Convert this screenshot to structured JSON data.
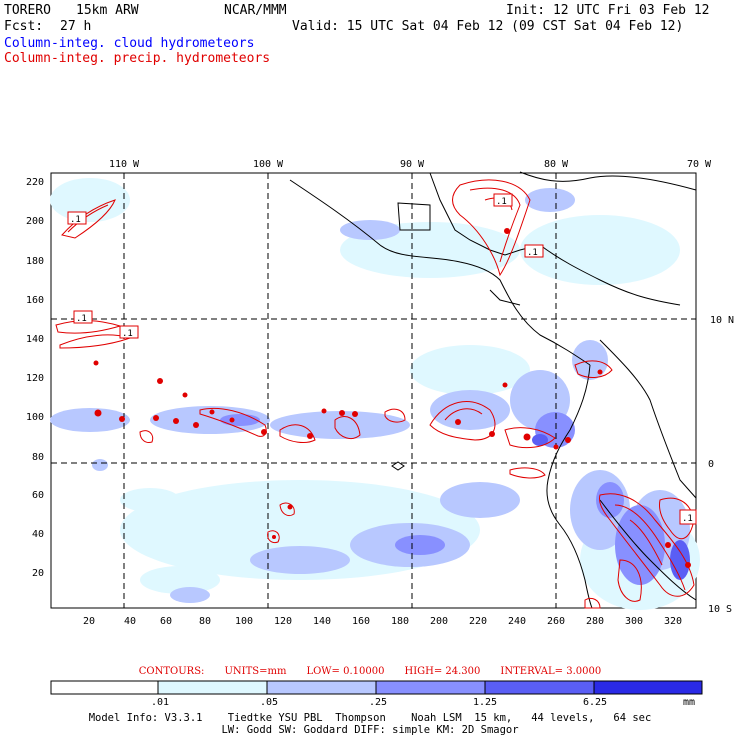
{
  "header": {
    "model_name": "TORERO",
    "resolution": "15km ARW",
    "org": "NCAR/MMM",
    "init": "Init: 12 UTC Fri 03 Feb 12",
    "fcst_label": "Fcst:",
    "fcst_value": "27 h",
    "valid": "Valid: 15 UTC Sat 04 Feb 12 (09 CST Sat 04 Feb 12)",
    "legend_cloud": "Column-integ. cloud hydrometeors",
    "legend_precip": "Column-integ. precip. hydrometeors"
  },
  "colors": {
    "cloud": "#0000ff",
    "precip": "#e00000",
    "land": "#000000"
  },
  "map": {
    "top_ticks": [
      "110 W",
      "100 W",
      "90 W",
      "80 W",
      "70 W"
    ],
    "left_ticks": [
      "220",
      "200",
      "180",
      "160",
      "140",
      "120",
      "100",
      "80",
      "60",
      "40",
      "20"
    ],
    "bottom_ticks": [
      "20",
      "40",
      "60",
      "80",
      "100",
      "120",
      "140",
      "160",
      "180",
      "200",
      "220",
      "240",
      "260",
      "280",
      "300",
      "320"
    ],
    "right_ticks": [
      "10 N",
      "0",
      "10 S"
    ],
    "contour_labels": [
      ".1",
      ".1",
      ".1",
      ".1",
      ".1",
      ".1"
    ]
  },
  "contours": {
    "title": "CONTOURS:",
    "units": "UNITS=mm",
    "low": "LOW= 0.10000",
    "high": "HIGH= 24.300",
    "interval": "INTERVAL= 3.0000"
  },
  "colorbar": {
    "labels": [
      ".01",
      ".05",
      ".25",
      "1.25",
      "6.25",
      "mm"
    ],
    "colors": [
      "#ffffff",
      "#dff8ff",
      "#b8c8ff",
      "#8890ff",
      "#5a5ef5",
      "#2a2ae6"
    ]
  },
  "model_info": {
    "line1": "Model Info: V3.3.1    Tiedtke YSU PBL  Thompson    Noah LSM  15 km,   44 levels,   64 sec",
    "line2": "LW: Godd SW: Goddard DIFF: simple KM: 2D Smagor"
  }
}
